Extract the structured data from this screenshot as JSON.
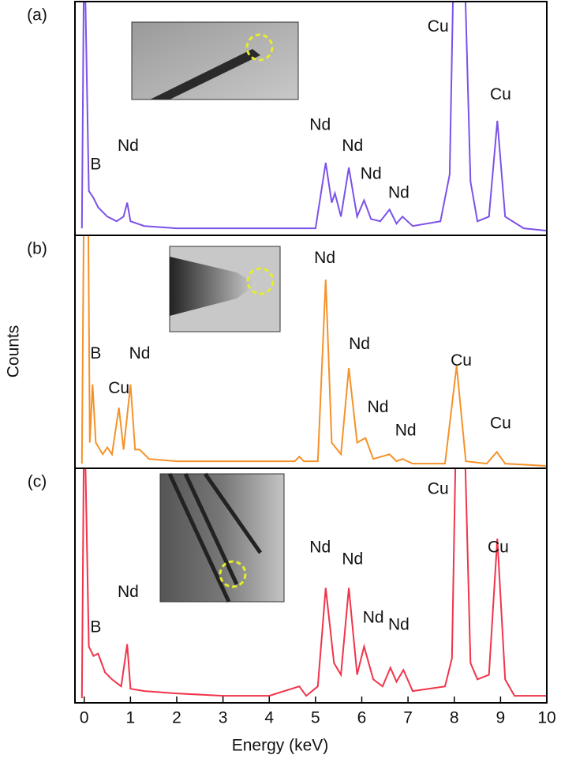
{
  "chart_data": {
    "type": "line",
    "xlabel": "Energy (keV)",
    "ylabel": "Counts",
    "xlim": [
      -0.2,
      10
    ],
    "xticks": [
      0,
      1,
      2,
      3,
      4,
      5,
      6,
      7,
      8,
      9,
      10
    ],
    "panels": [
      {
        "label": "(a)",
        "color": "#7b52e8",
        "ylim": [
          0,
          100
        ],
        "x": [
          -0.05,
          0.0,
          0.1,
          0.2,
          0.3,
          0.5,
          0.7,
          0.85,
          0.93,
          1.0,
          1.3,
          2,
          3,
          4,
          5.0,
          5.22,
          5.35,
          5.42,
          5.55,
          5.72,
          5.9,
          6.05,
          6.2,
          6.4,
          6.6,
          6.75,
          6.88,
          7.1,
          7.7,
          7.9,
          8.0,
          8.2,
          8.35,
          8.5,
          8.75,
          8.93,
          9.1,
          9.5,
          10
        ],
        "values": [
          3,
          130,
          19,
          16,
          12,
          8,
          6,
          8,
          14,
          6,
          4,
          3,
          3,
          3,
          3,
          31,
          14,
          18,
          8,
          29,
          8,
          15,
          7,
          6,
          11,
          5,
          8,
          4,
          6,
          26,
          130,
          130,
          23,
          6,
          8,
          49,
          8,
          3,
          2
        ],
        "annotations": [
          {
            "text": "B",
            "x": 0.25,
            "y": 30
          },
          {
            "text": "Nd",
            "x": 0.95,
            "y": 38
          },
          {
            "text": "Nd",
            "x": 5.1,
            "y": 47
          },
          {
            "text": "Nd",
            "x": 5.8,
            "y": 38
          },
          {
            "text": "Nd",
            "x": 6.2,
            "y": 26
          },
          {
            "text": "Nd",
            "x": 6.8,
            "y": 18
          },
          {
            "text": "Cu",
            "x": 7.65,
            "y": 89
          },
          {
            "text": "Cu",
            "x": 9.0,
            "y": 60
          }
        ]
      },
      {
        "label": "(b)",
        "color": "#f5922a",
        "ylim": [
          0,
          100
        ],
        "x": [
          -0.05,
          0.0,
          0.08,
          0.12,
          0.18,
          0.25,
          0.4,
          0.5,
          0.6,
          0.75,
          0.85,
          1.0,
          1.1,
          1.2,
          1.4,
          2,
          3,
          4,
          4.55,
          4.65,
          4.75,
          5.05,
          5.22,
          5.35,
          5.55,
          5.72,
          5.9,
          6.08,
          6.25,
          6.6,
          6.75,
          6.88,
          7.1,
          7.8,
          8.05,
          8.25,
          8.7,
          8.92,
          9.1,
          10
        ],
        "values": [
          2,
          130,
          130,
          11,
          36,
          11,
          6,
          9,
          6,
          26,
          8,
          36,
          8,
          8,
          4,
          3,
          3,
          3,
          3,
          5,
          3,
          3,
          81,
          11,
          6,
          43,
          11,
          13,
          4,
          6,
          3,
          4,
          2,
          2,
          44,
          3,
          2,
          7,
          2,
          1
        ],
        "annotations": [
          {
            "text": "B",
            "x": 0.25,
            "y": 49
          },
          {
            "text": "Cu",
            "x": 0.75,
            "y": 34
          },
          {
            "text": "Nd",
            "x": 1.2,
            "y": 49
          },
          {
            "text": "Nd",
            "x": 5.2,
            "y": 90
          },
          {
            "text": "Nd",
            "x": 5.95,
            "y": 53
          },
          {
            "text": "Nd",
            "x": 6.35,
            "y": 26
          },
          {
            "text": "Nd",
            "x": 6.95,
            "y": 16
          },
          {
            "text": "Cu",
            "x": 8.15,
            "y": 46
          },
          {
            "text": "Cu",
            "x": 9.0,
            "y": 19
          }
        ]
      },
      {
        "label": "(c)",
        "color": "#f0344a",
        "ylim": [
          0,
          100
        ],
        "x": [
          -0.05,
          0.0,
          0.1,
          0.2,
          0.3,
          0.45,
          0.6,
          0.8,
          0.93,
          1.0,
          1.3,
          2,
          3,
          4,
          4.65,
          4.8,
          5.05,
          5.22,
          5.4,
          5.55,
          5.72,
          5.9,
          6.05,
          6.25,
          6.45,
          6.62,
          6.75,
          6.9,
          7.1,
          7.8,
          7.95,
          8.05,
          8.2,
          8.35,
          8.5,
          8.75,
          8.93,
          9.1,
          9.3,
          10
        ],
        "values": [
          2,
          130,
          24,
          20,
          21,
          13,
          10,
          7,
          25,
          6,
          5,
          4,
          3,
          3,
          7,
          3,
          7,
          49,
          17,
          12,
          49,
          12,
          24,
          10,
          7,
          15,
          9,
          14,
          5,
          7,
          19,
          130,
          130,
          17,
          10,
          12,
          70,
          10,
          3,
          3
        ],
        "annotations": [
          {
            "text": "B",
            "x": 0.25,
            "y": 32
          },
          {
            "text": "Nd",
            "x": 0.95,
            "y": 47
          },
          {
            "text": "Nd",
            "x": 5.1,
            "y": 66
          },
          {
            "text": "Nd",
            "x": 5.8,
            "y": 61
          },
          {
            "text": "Nd",
            "x": 6.25,
            "y": 36
          },
          {
            "text": "Nd",
            "x": 6.8,
            "y": 33
          },
          {
            "text": "Cu",
            "x": 7.65,
            "y": 91
          },
          {
            "text": "Cu",
            "x": 8.95,
            "y": 66
          }
        ]
      }
    ]
  }
}
